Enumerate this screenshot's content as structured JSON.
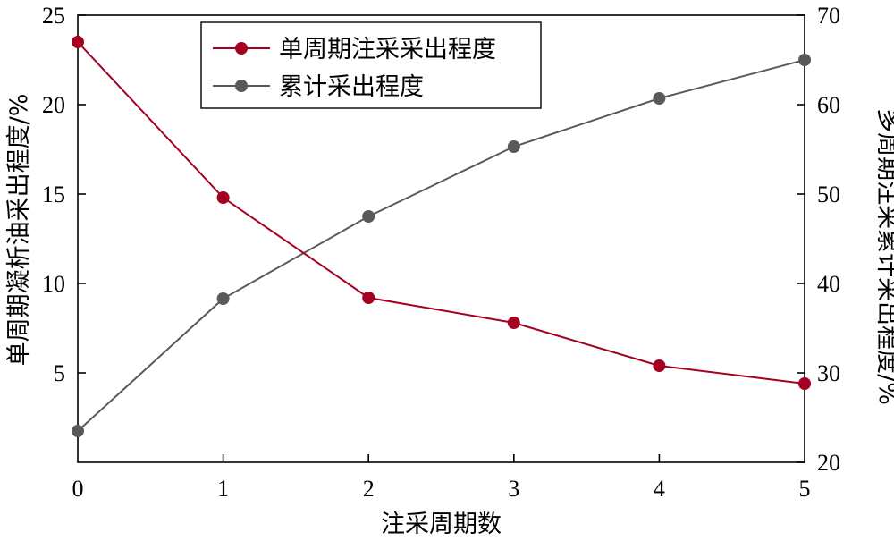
{
  "chart_data": {
    "type": "line",
    "x": [
      0,
      1,
      2,
      3,
      4,
      5
    ],
    "xlabel": "注采周期数",
    "ylabel": "单周期凝析油采出程度/%",
    "y2label": "多周期注采累计采出程度/%",
    "xlim": [
      0,
      5
    ],
    "xticks": [
      "0",
      "1",
      "2",
      "3",
      "4",
      "5"
    ],
    "ylim": [
      0,
      25
    ],
    "yticks": [
      "5",
      "10",
      "15",
      "20",
      "25"
    ],
    "y2lim": [
      20,
      70
    ],
    "y2ticks": [
      "20",
      "30",
      "40",
      "50",
      "60",
      "70"
    ],
    "grid": false,
    "legend": "top-center",
    "series": [
      {
        "name": "单周期注采采出程度",
        "axis": "left",
        "color": "#a50021",
        "values": [
          23.5,
          14.8,
          9.2,
          7.8,
          5.4,
          4.4
        ]
      },
      {
        "name": "累计采出程度",
        "axis": "right",
        "color": "#595959",
        "values": [
          23.5,
          38.3,
          47.5,
          55.3,
          60.7,
          65.0
        ]
      }
    ]
  }
}
